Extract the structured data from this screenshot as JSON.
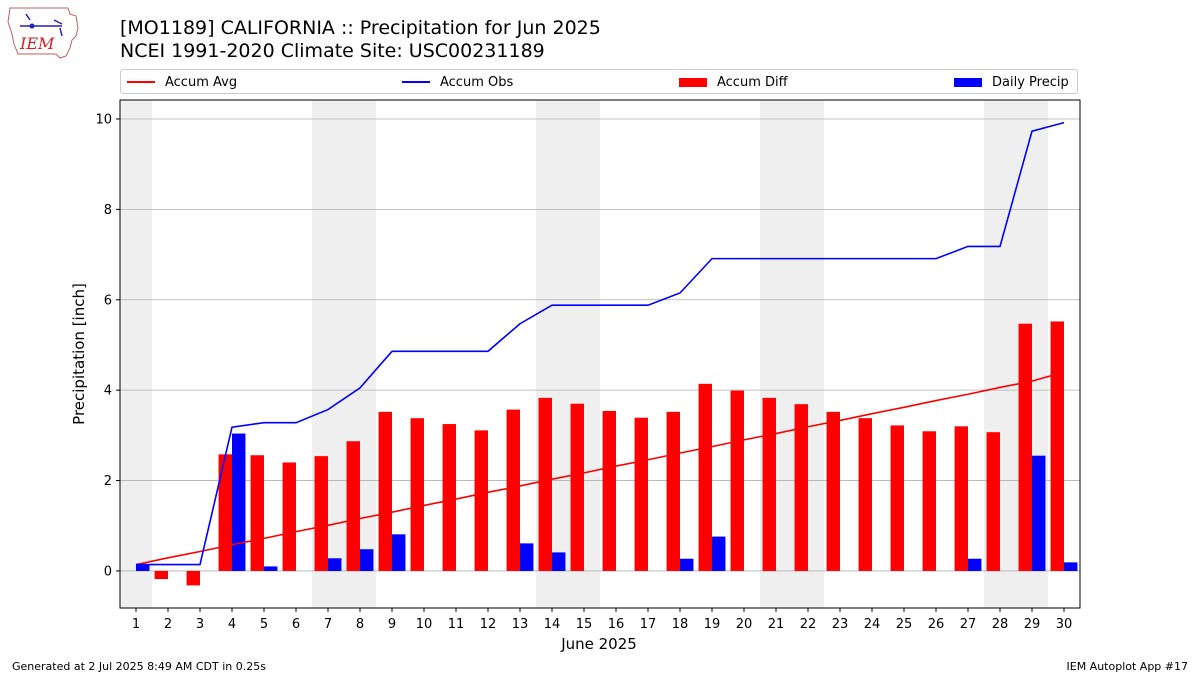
{
  "header": {
    "title_line1": "[MO1189] CALIFORNIA :: Precipitation for Jun 2025",
    "title_line2": "NCEI 1991-2020 Climate Site: USC00231189"
  },
  "logo": {
    "text": "IEM"
  },
  "footer": {
    "left": "Generated at 2 Jul 2025 8:49 AM CDT in 0.25s",
    "right": "IEM Autoplot App #17"
  },
  "colors": {
    "avg": "#ff0000",
    "obs": "#0000ff",
    "diff": "#ff0000",
    "daily": "#0000ff",
    "weekend": "#efefef"
  },
  "chart_data": {
    "type": "bar",
    "title": "[MO1189] CALIFORNIA :: Precipitation for Jun 2025",
    "xlabel": "June 2025",
    "ylabel": "Precipitation [inch]",
    "ylim": [
      -0.82,
      10.42
    ],
    "yticks": [
      0,
      2,
      4,
      6,
      8,
      10
    ],
    "grid": true,
    "legend_position": "top",
    "legend": [
      "Accum Avg",
      "Accum Obs",
      "Accum Diff",
      "Daily Precip"
    ],
    "weekend_days": [
      1,
      7,
      8,
      14,
      15,
      21,
      22,
      28,
      29
    ],
    "x": [
      1,
      2,
      3,
      4,
      5,
      6,
      7,
      8,
      9,
      10,
      11,
      12,
      13,
      14,
      15,
      16,
      17,
      18,
      19,
      20,
      21,
      22,
      23,
      24,
      25,
      26,
      27,
      28,
      29,
      30
    ],
    "series": [
      {
        "name": "Accum Avg",
        "kind": "line",
        "values": [
          0.14,
          0.29,
          0.43,
          0.58,
          0.72,
          0.87,
          1.01,
          1.16,
          1.3,
          1.45,
          1.59,
          1.74,
          1.88,
          2.03,
          2.17,
          2.32,
          2.46,
          2.61,
          2.75,
          2.9,
          3.04,
          3.19,
          3.33,
          3.48,
          3.62,
          3.77,
          3.91,
          4.06,
          4.2,
          4.4
        ]
      },
      {
        "name": "Accum Obs",
        "kind": "line",
        "values": [
          0.14,
          0.14,
          0.14,
          3.18,
          3.28,
          3.28,
          3.57,
          4.05,
          4.86,
          4.86,
          4.86,
          4.86,
          5.47,
          5.88,
          5.88,
          5.88,
          5.88,
          6.15,
          6.91,
          6.91,
          6.91,
          6.91,
          6.91,
          6.91,
          6.91,
          6.91,
          7.18,
          7.18,
          9.73,
          9.92
        ]
      },
      {
        "name": "Accum Diff",
        "kind": "bar",
        "values": [
          0.0,
          -0.18,
          -0.32,
          2.58,
          2.56,
          2.4,
          2.54,
          2.87,
          3.52,
          3.38,
          3.25,
          3.11,
          3.57,
          3.83,
          3.7,
          3.54,
          3.39,
          3.52,
          4.14,
          3.99,
          3.83,
          3.69,
          3.52,
          3.38,
          3.22,
          3.09,
          3.2,
          3.07,
          5.47,
          5.52
        ]
      },
      {
        "name": "Daily Precip",
        "kind": "bar",
        "values": [
          0.14,
          0.0,
          0.0,
          3.04,
          0.1,
          0.0,
          0.28,
          0.48,
          0.81,
          0.0,
          0.0,
          0.0,
          0.61,
          0.41,
          0.0,
          0.0,
          0.0,
          0.27,
          0.76,
          0.0,
          0.0,
          0.0,
          0.0,
          0.0,
          0.0,
          0.0,
          0.27,
          0.0,
          2.55,
          0.19
        ]
      }
    ]
  }
}
